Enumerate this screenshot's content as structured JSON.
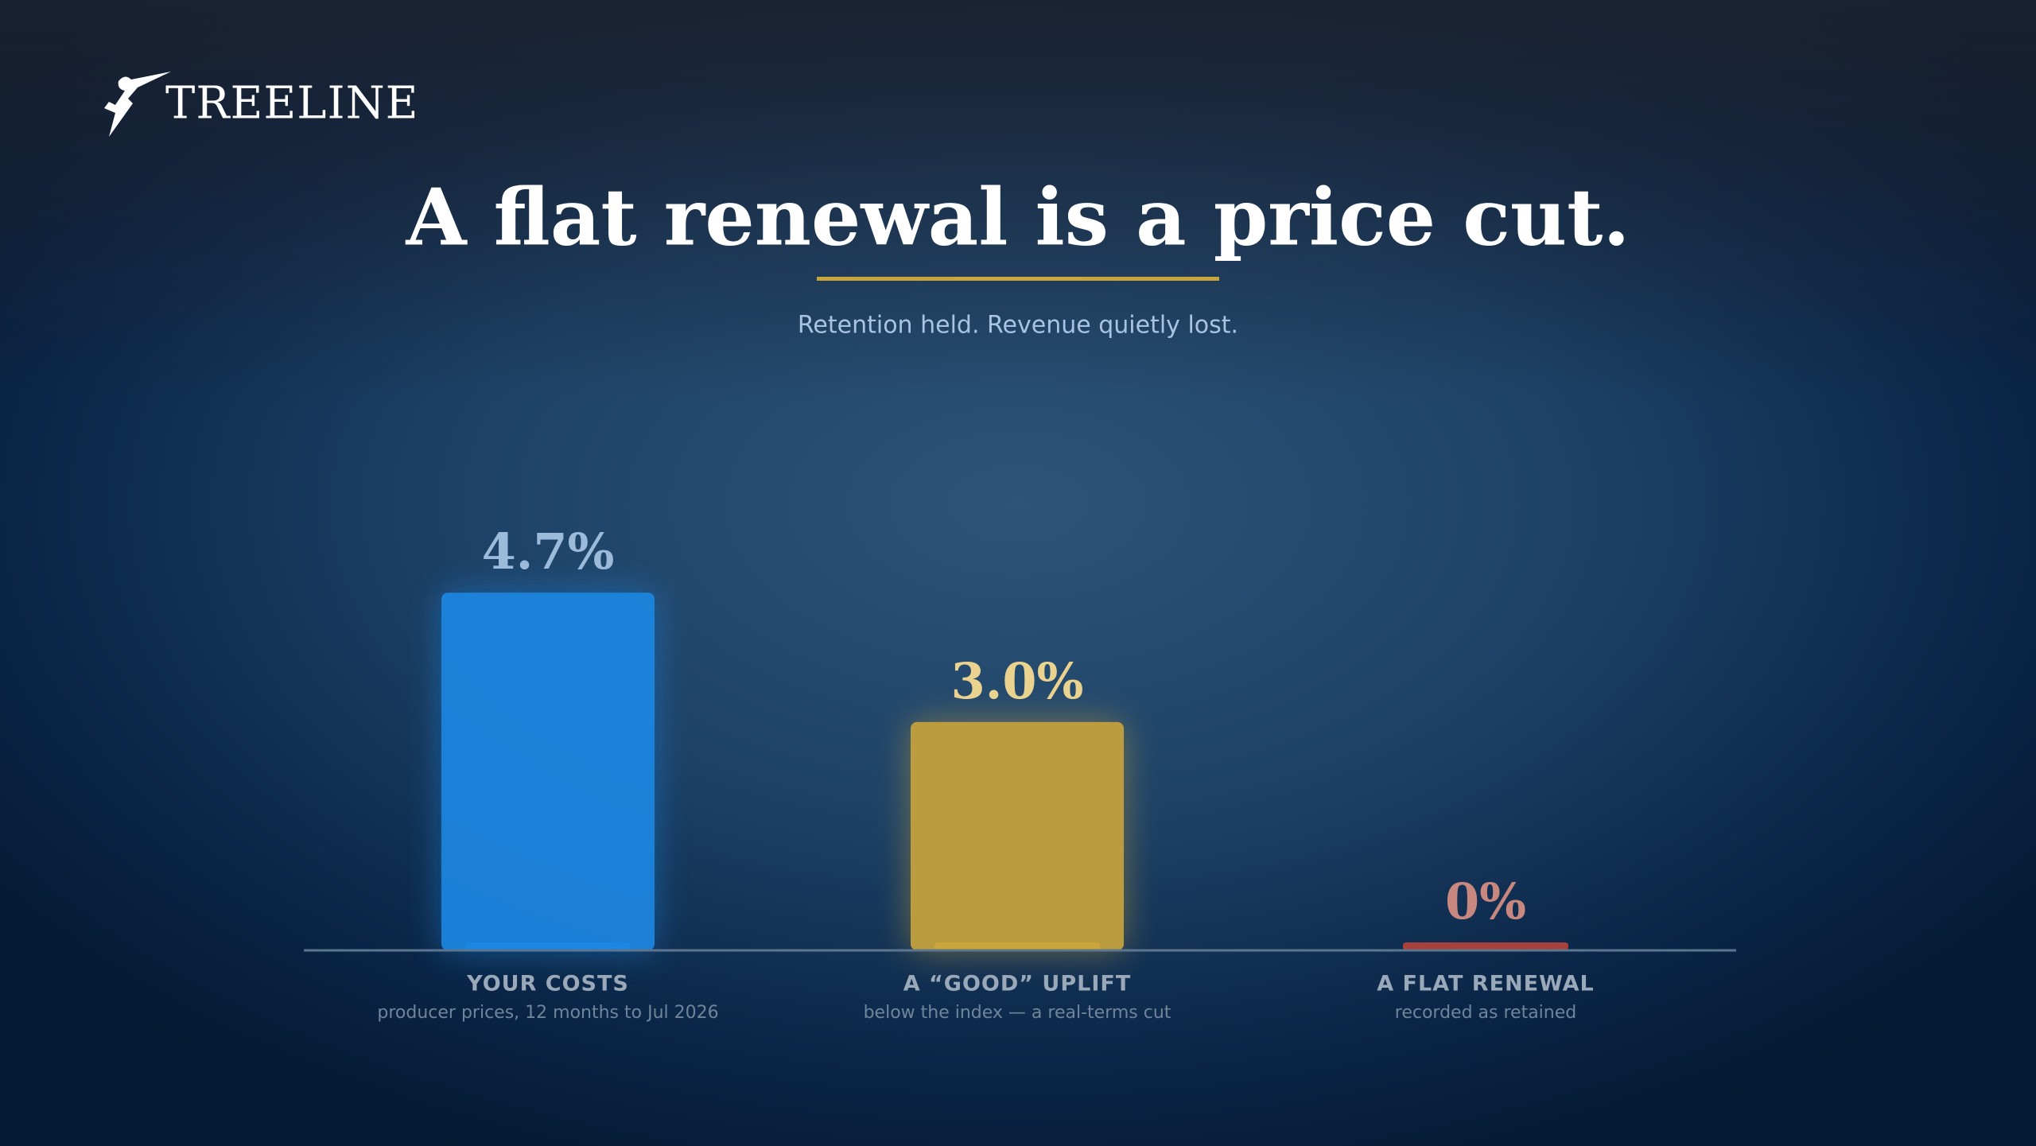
{
  "brand": "TREELINE",
  "chart_data": {
    "type": "bar",
    "title": "A flat renewal is a price cut.",
    "subtitle": "Retention held. Revenue quietly lost.",
    "categories": [
      "YOUR COSTS",
      "A “GOOD” UPLIFT",
      "A FLAT RENEWAL"
    ],
    "category_notes": [
      "producer prices, 12 months to Jul 2026",
      "below the index — a real-terms cut",
      "recorded as retained"
    ],
    "values": [
      4.7,
      3.0,
      0
    ],
    "value_labels": [
      "4.7%",
      "3.0%",
      "0%"
    ],
    "colors": [
      "#1a87e2",
      "#c9a53c",
      "#a8413c"
    ],
    "value_label_colors": [
      "#9cbad9",
      "#ead38e",
      "#c9887f"
    ]
  }
}
